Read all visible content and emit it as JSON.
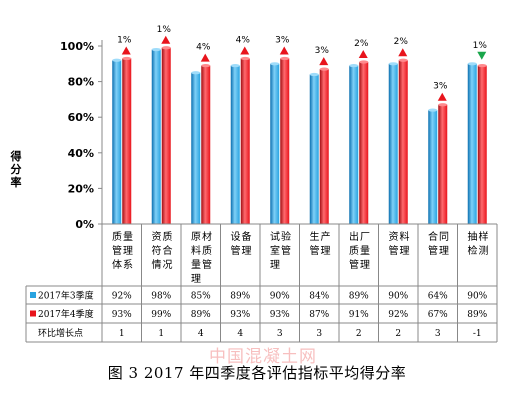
{
  "chart_data": {
    "type": "bar",
    "ylabel": "得分率",
    "ylim": [
      0,
      100
    ],
    "yticks": [
      0,
      20,
      40,
      60,
      80,
      100
    ],
    "ytick_labels": [
      "0%",
      "20%",
      "40%",
      "60%",
      "80%",
      "100%"
    ],
    "categories": [
      "质量管理体系",
      "资质符合情况",
      "原材料质量管理",
      "设备管理",
      "试验室管理",
      "生产管理",
      "出厂质量管理",
      "资料管理",
      "合同管理",
      "抽样检测"
    ],
    "series": [
      {
        "name": "2017年3季度",
        "values": [
          92,
          98,
          85,
          89,
          90,
          84,
          89,
          90,
          64,
          90
        ],
        "labels": [
          "92%",
          "98%",
          "85%",
          "89%",
          "90%",
          "84%",
          "89%",
          "90%",
          "64%",
          "90%"
        ],
        "color": "#29a3e0"
      },
      {
        "name": "2017年4季度",
        "values": [
          93,
          99,
          89,
          93,
          93,
          87,
          91,
          92,
          67,
          89
        ],
        "labels": [
          "93%",
          "99%",
          "89%",
          "93%",
          "93%",
          "87%",
          "91%",
          "92%",
          "67%",
          "89%"
        ],
        "color": "#e8141c"
      }
    ],
    "growth_row_label": "环比增长点",
    "growth_values": [
      "1",
      "1",
      "4",
      "4",
      "3",
      "3",
      "2",
      "2",
      "3",
      "-1"
    ],
    "change_labels": [
      "1%",
      "1%",
      "4%",
      "4%",
      "3%",
      "3%",
      "2%",
      "2%",
      "3%",
      "1%"
    ],
    "change_direction": [
      "up",
      "up",
      "up",
      "up",
      "up",
      "up",
      "up",
      "up",
      "up",
      "down"
    ],
    "up_color": "#e8141c",
    "down_color": "#1aa64b",
    "grid": false
  },
  "caption": "图 3 2017 年四季度各评估指标平均得分率",
  "watermark": "中国混凝土网"
}
